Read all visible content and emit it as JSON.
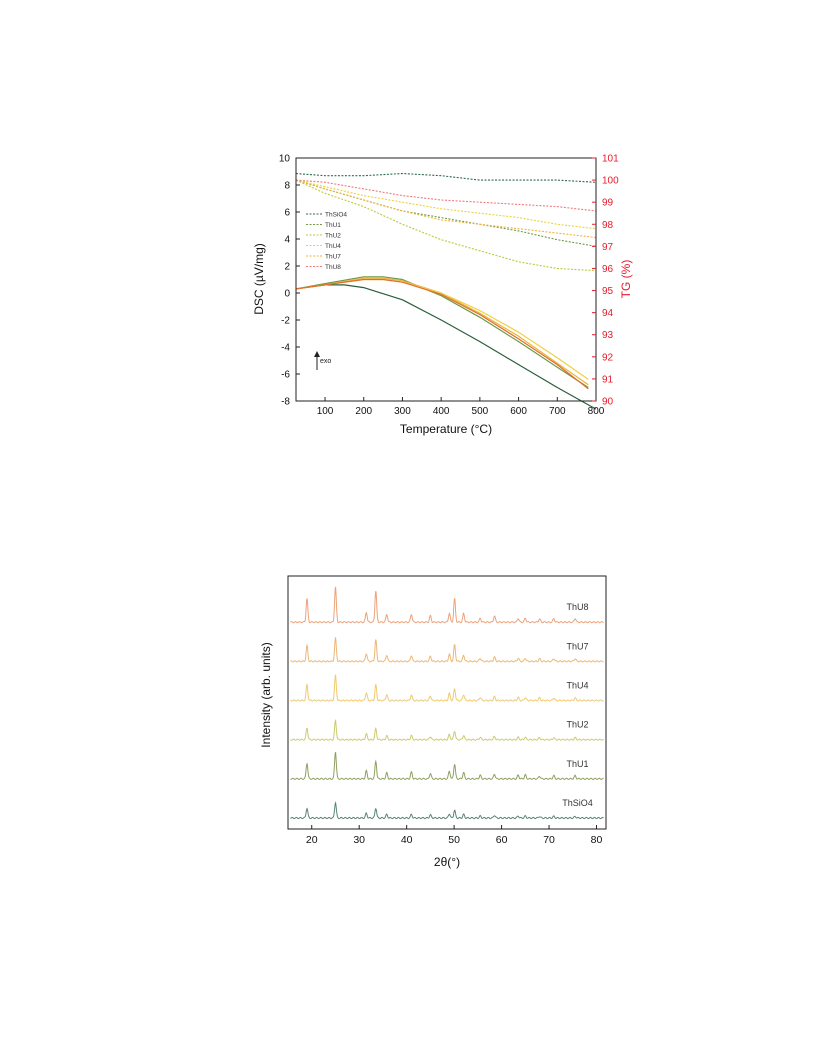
{
  "chart_data": [
    {
      "type": "line",
      "xlabel": "Temperature (°C)",
      "ylabel": "DSC (µV/mg)",
      "y2label": "TG (%)",
      "xlim": [
        25,
        800
      ],
      "ylim": [
        -8,
        10
      ],
      "y2lim": [
        90,
        101
      ],
      "xticks": [
        100,
        200,
        300,
        400,
        500,
        600,
        700,
        800
      ],
      "yticks": [
        -8,
        -6,
        -4,
        -2,
        0,
        2,
        4,
        6,
        8,
        10
      ],
      "y2ticks": [
        90,
        91,
        92,
        93,
        94,
        95,
        96,
        97,
        98,
        99,
        100,
        101
      ],
      "annotation": "exo",
      "legend_position": "left",
      "colors": {
        "y2_axis": "#e8192c"
      },
      "tg_series": [
        {
          "name": "ThSiO4",
          "color": "#2f6b4b",
          "x": [
            25,
            100,
            200,
            300,
            400,
            500,
            600,
            700,
            800
          ],
          "y": [
            100.3,
            100.2,
            100.2,
            100.3,
            100.2,
            100.0,
            100.0,
            100.0,
            99.9
          ]
        },
        {
          "name": "ThU1",
          "color": "#6f9a45",
          "x": [
            25,
            100,
            200,
            300,
            400,
            500,
            600,
            700,
            800
          ],
          "y": [
            100.0,
            99.6,
            99.1,
            98.6,
            98.3,
            98.0,
            97.7,
            97.3,
            97.0
          ]
        },
        {
          "name": "ThU2",
          "color": "#bcc93a",
          "x": [
            25,
            100,
            200,
            300,
            400,
            500,
            600,
            700,
            800
          ],
          "y": [
            100.0,
            99.4,
            98.8,
            98.0,
            97.3,
            96.8,
            96.3,
            96.0,
            95.9
          ]
        },
        {
          "name": "ThU4",
          "color": "#ead23a",
          "x": [
            25,
            100,
            200,
            300,
            400,
            500,
            600,
            700,
            800
          ],
          "y": [
            100.0,
            99.7,
            99.3,
            99.0,
            98.7,
            98.5,
            98.3,
            98.0,
            97.8
          ]
        },
        {
          "name": "ThU7",
          "color": "#f0b43a",
          "x": [
            25,
            100,
            200,
            300,
            400,
            500,
            600,
            700,
            800
          ],
          "y": [
            100.0,
            99.6,
            99.1,
            98.6,
            98.2,
            98.0,
            97.8,
            97.6,
            97.4
          ]
        },
        {
          "name": "ThU8",
          "color": "#f07a7a",
          "x": [
            25,
            100,
            200,
            300,
            400,
            500,
            600,
            700,
            800
          ],
          "y": [
            100.0,
            99.9,
            99.6,
            99.3,
            99.1,
            99.0,
            98.9,
            98.8,
            98.6
          ]
        }
      ],
      "dsc_series": [
        {
          "color": "#2b5e3c",
          "x": [
            25,
            100,
            150,
            200,
            300,
            400,
            500,
            600,
            700,
            800
          ],
          "y": [
            0.3,
            0.6,
            0.6,
            0.4,
            -0.5,
            -2.0,
            -3.6,
            -5.3,
            -7.0,
            -8.6
          ]
        },
        {
          "color": "#6f9a45",
          "x": [
            25,
            100,
            200,
            250,
            300,
            400,
            500,
            600,
            700,
            780
          ],
          "y": [
            0.3,
            0.7,
            1.2,
            1.2,
            1.0,
            -0.2,
            -1.8,
            -3.6,
            -5.5,
            -7.0
          ]
        },
        {
          "color": "#e8b53a",
          "x": [
            25,
            100,
            200,
            250,
            300,
            400,
            500,
            600,
            700,
            780
          ],
          "y": [
            0.3,
            0.6,
            1.1,
            1.1,
            0.9,
            0.0,
            -1.5,
            -3.2,
            -5.2,
            -6.8
          ]
        },
        {
          "color": "#f0d046",
          "x": [
            25,
            100,
            200,
            250,
            300,
            400,
            500,
            600,
            700,
            780
          ],
          "y": [
            0.3,
            0.6,
            1.0,
            1.0,
            0.8,
            0.0,
            -1.3,
            -2.9,
            -4.8,
            -6.4
          ]
        },
        {
          "color": "#e46c2c",
          "x": [
            25,
            100,
            200,
            250,
            300,
            400,
            500,
            600,
            700,
            780
          ],
          "y": [
            0.3,
            0.6,
            1.0,
            1.0,
            0.8,
            -0.1,
            -1.6,
            -3.4,
            -5.3,
            -7.1
          ]
        }
      ]
    },
    {
      "type": "line",
      "xlabel": "2θ(°)",
      "ylabel": "Intensity (arb. units)",
      "xlim": [
        15,
        82
      ],
      "xticks": [
        20,
        30,
        40,
        50,
        60,
        70,
        80
      ],
      "peak_positions": [
        19.0,
        25.0,
        31.5,
        33.5,
        35.8,
        41.0,
        45.0,
        49.0,
        50.1,
        52.0,
        55.5,
        58.5,
        63.5,
        65.0,
        68.0,
        71.0,
        75.5
      ],
      "series": [
        {
          "name": "ThU8",
          "color": "#eda27a",
          "baseline": 5,
          "peaks": [
            6.0,
            9.0,
            2.5,
            8.0,
            2.0,
            2.0,
            1.6,
            2.3,
            6.0,
            2.2,
            1.0,
            1.6,
            1.0,
            1.0,
            0.8,
            0.9,
            1.0
          ]
        },
        {
          "name": "ThU7",
          "color": "#edb774",
          "baseline": 4,
          "peaks": [
            4.0,
            6.0,
            2.0,
            5.5,
            1.6,
            1.5,
            1.3,
            1.8,
            4.2,
            1.6,
            0.8,
            1.1,
            0.8,
            0.8,
            0.7,
            0.7,
            0.7
          ]
        },
        {
          "name": "ThU4",
          "color": "#f0ca6e",
          "baseline": 3,
          "peaks": [
            4.0,
            6.5,
            2.0,
            4.0,
            1.5,
            1.4,
            1.2,
            1.8,
            3.0,
            1.5,
            0.8,
            1.0,
            0.8,
            0.8,
            0.7,
            0.7,
            0.7
          ]
        },
        {
          "name": "ThU2",
          "color": "#cbcb70",
          "baseline": 2,
          "peaks": [
            3.0,
            5.0,
            1.5,
            2.8,
            1.0,
            1.0,
            0.8,
            1.3,
            2.2,
            1.1,
            0.6,
            0.8,
            0.6,
            0.6,
            0.5,
            0.5,
            0.5
          ]
        },
        {
          "name": "ThU1",
          "color": "#8ea060",
          "baseline": 1,
          "peaks": [
            4.0,
            7.0,
            2.0,
            4.5,
            1.5,
            1.7,
            1.4,
            2.0,
            3.8,
            1.6,
            0.9,
            1.2,
            0.9,
            1.0,
            0.7,
            0.8,
            0.8
          ]
        },
        {
          "name": "ThSiO4",
          "color": "#5c8472",
          "baseline": 0,
          "peaks": [
            2.5,
            4.0,
            1.2,
            2.5,
            0.9,
            0.9,
            0.8,
            1.1,
            2.0,
            0.9,
            0.5,
            0.7,
            0.5,
            0.5,
            0.4,
            0.4,
            0.4
          ]
        }
      ]
    }
  ]
}
